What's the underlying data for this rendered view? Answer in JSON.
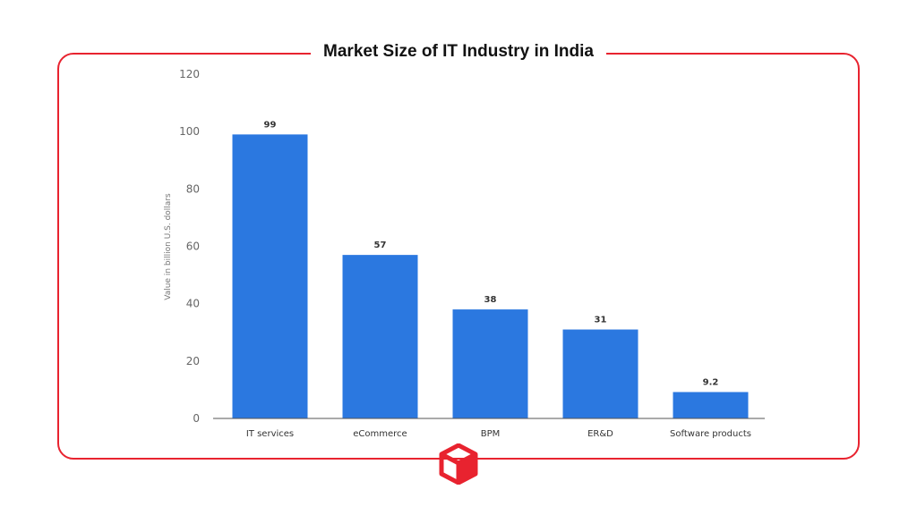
{
  "chart_data": {
    "type": "bar",
    "title": "Market Size of IT Industry in India",
    "xlabel": "",
    "ylabel": "Value in billion U.S. dollars",
    "categories": [
      "IT services",
      "eCommerce",
      "BPM",
      "ER&D",
      "Software products"
    ],
    "values": [
      99,
      57,
      38,
      31,
      9.2
    ],
    "value_labels": [
      "99",
      "57",
      "38",
      "31",
      "9.2"
    ],
    "ylim": [
      0,
      120
    ],
    "yticks": [
      0,
      20,
      40,
      60,
      80,
      100,
      120
    ],
    "grid": false,
    "bar_color": "#2b78e0"
  },
  "colors": {
    "frame": "#e8232f",
    "logo": "#e8232f"
  },
  "logo": {
    "icon": "cube-logo-icon"
  }
}
